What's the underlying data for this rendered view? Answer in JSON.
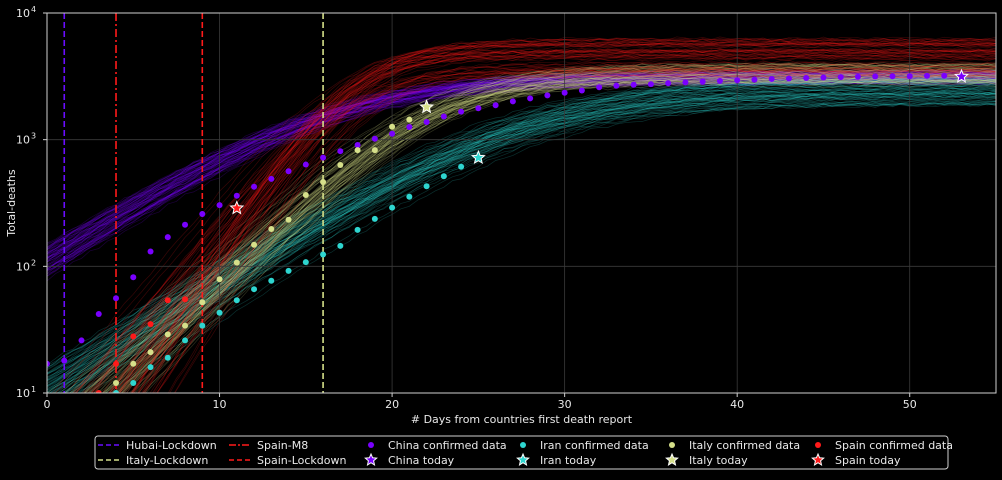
{
  "chart_data": {
    "type": "scatter",
    "xlabel": "# Days from countries first death report",
    "ylabel": "Total-deaths",
    "x_scale": "linear",
    "y_scale": "log",
    "xlim": [
      0,
      55
    ],
    "ylim": [
      10,
      10000
    ],
    "x_ticks": [
      0,
      10,
      20,
      30,
      40,
      50
    ],
    "y_ticks": [
      {
        "value": 10,
        "base": "10",
        "exp": "1"
      },
      {
        "value": 100,
        "base": "10",
        "exp": "2"
      },
      {
        "value": 1000,
        "base": "10",
        "exp": "3"
      },
      {
        "value": 10000,
        "base": "10",
        "exp": "4"
      }
    ],
    "grid": true,
    "legend_position": "below",
    "vlines": [
      {
        "name": "Hubai-Lockdown",
        "x": 1,
        "color": "#6a0dff",
        "style": "dashed"
      },
      {
        "name": "Italy-Lockdown",
        "x": 16,
        "color": "#d6e08a",
        "style": "dashed"
      },
      {
        "name": "Spain-M8",
        "x": 4,
        "color": "#ff1a1a",
        "style": "dashdot"
      },
      {
        "name": "Spain-Lockdown",
        "x": 9,
        "color": "#ff1a1a",
        "style": "dashed"
      }
    ],
    "series": [
      {
        "name": "China confirmed data",
        "today_name": "China today",
        "color": "#7a00ff",
        "today": {
          "x": 53,
          "y": 3150
        },
        "x": [
          0,
          1,
          2,
          3,
          4,
          5,
          6,
          7,
          8,
          9,
          10,
          11,
          12,
          13,
          14,
          15,
          16,
          17,
          18,
          19,
          20,
          21,
          22,
          23,
          24,
          25,
          26,
          27,
          28,
          29,
          30,
          31,
          32,
          33,
          34,
          35,
          36,
          37,
          38,
          39,
          40,
          41,
          42,
          43,
          44,
          45,
          46,
          47,
          48,
          49,
          50,
          51,
          52,
          53
        ],
        "y": [
          17,
          18,
          26,
          42,
          56,
          82,
          131,
          170,
          213,
          259,
          304,
          361,
          425,
          490,
          563,
          636,
          722,
          811,
          908,
          1016,
          1113,
          1259,
          1380,
          1523,
          1665,
          1770,
          1868,
          2004,
          2118,
          2236,
          2345,
          2442,
          2592,
          2663,
          2715,
          2744,
          2788,
          2835,
          2870,
          2912,
          2943,
          2981,
          3013,
          3042,
          3070,
          3097,
          3119,
          3136,
          3158,
          3169,
          3176,
          3189,
          3199,
          3150
        ]
      },
      {
        "name": "Iran confirmed data",
        "today_name": "Iran today",
        "color": "#2ed6d0",
        "today": {
          "x": 25,
          "y": 720
        },
        "x": [
          4,
          5,
          6,
          7,
          8,
          9,
          10,
          11,
          12,
          13,
          14,
          15,
          16,
          17,
          18,
          19,
          20,
          21,
          22,
          23,
          24
        ],
        "y": [
          10,
          12,
          16,
          19,
          26,
          34,
          43,
          54,
          66,
          77,
          92,
          108,
          124,
          145,
          194,
          237,
          291,
          354,
          429,
          514,
          611
        ]
      },
      {
        "name": "Italy confirmed data",
        "today_name": "Italy today",
        "color": "#d6e08a",
        "today": {
          "x": 22,
          "y": 1810
        },
        "x": [
          4,
          5,
          6,
          7,
          8,
          9,
          10,
          11,
          12,
          13,
          14,
          15,
          16,
          17,
          18,
          19,
          20,
          21
        ],
        "y": [
          12,
          17,
          21,
          29,
          34,
          52,
          79,
          107,
          148,
          197,
          233,
          366,
          463,
          631,
          827,
          827,
          1266,
          1441
        ]
      },
      {
        "name": "Spain confirmed data",
        "today_name": "Spain today",
        "color": "#ff1a1a",
        "today": {
          "x": 11,
          "y": 288
        },
        "x": [
          3,
          4,
          5,
          6,
          7,
          8
        ],
        "y": [
          10,
          17,
          28,
          35,
          54,
          55
        ]
      }
    ]
  }
}
